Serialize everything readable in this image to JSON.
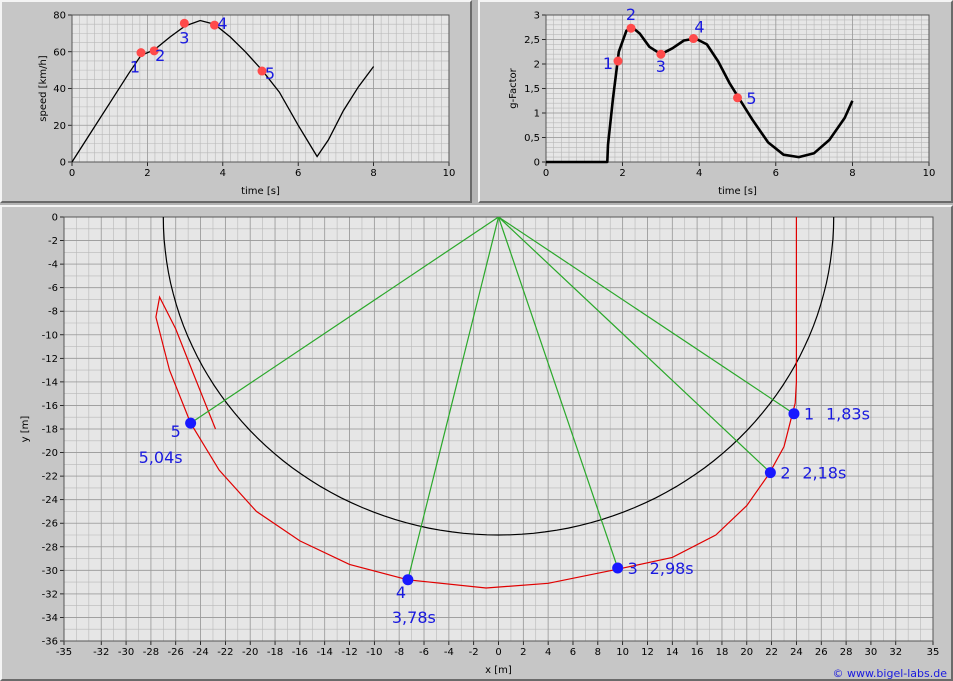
{
  "colors": {
    "panel_bg": "#c6c6c6",
    "plot_bg": "#e6e6e6",
    "grid_minor": "#b8b8b8",
    "grid_major": "#9a9a9a",
    "speed_curve": "#000000",
    "marker_top": "#ff4a4a",
    "marker_bottom": "#1818ff",
    "label_blue": "#1a1adf",
    "track": "#000000",
    "path": "#e00000",
    "rays": "#2aa82a"
  },
  "copyright": "© www.bigel-labs.de",
  "chart_data": [
    {
      "id": "speed",
      "type": "line",
      "xlabel": "time [s]",
      "ylabel": "speed [km/h]",
      "xlim": [
        0,
        10
      ],
      "ylim": [
        0,
        80
      ],
      "xticks": [
        0,
        2,
        4,
        6,
        8,
        10
      ],
      "yticks": [
        0,
        20,
        40,
        60,
        80
      ],
      "grid": true,
      "series": [
        {
          "x": [
            0,
            0.5,
            1.0,
            1.5,
            1.83,
            2.18,
            2.6,
            3.0,
            3.4,
            3.78,
            4.2,
            4.6,
            5.04,
            5.5,
            6.0,
            6.5,
            6.8,
            7.2,
            7.6,
            8.0
          ],
          "y": [
            0,
            16,
            32,
            48,
            58,
            61,
            68,
            74,
            77,
            75,
            68,
            60,
            50,
            38,
            20,
            3,
            12,
            28,
            41,
            52
          ]
        }
      ],
      "markers": [
        {
          "label": "1",
          "x": 1.83,
          "y": 59.5
        },
        {
          "label": "2",
          "x": 2.18,
          "y": 60.5
        },
        {
          "label": "3",
          "x": 2.98,
          "y": 75.5
        },
        {
          "label": "4",
          "x": 3.78,
          "y": 74.5
        },
        {
          "label": "5",
          "x": 5.04,
          "y": 49.5
        }
      ]
    },
    {
      "id": "gfactor",
      "type": "line",
      "xlabel": "time [s]",
      "ylabel": "g-Factor",
      "xlim": [
        0,
        10
      ],
      "ylim": [
        0,
        3
      ],
      "xticks": [
        0,
        2,
        4,
        6,
        8,
        10
      ],
      "yticks": [
        0,
        0.5,
        1,
        1.5,
        2,
        2.5,
        3
      ],
      "ytick_labels": [
        "0",
        "0,5",
        "1",
        "1,5",
        "2",
        "2,5",
        "3"
      ],
      "grid": true,
      "series": [
        {
          "x": [
            0,
            1.6,
            1.62,
            1.75,
            1.9,
            2.1,
            2.25,
            2.45,
            2.7,
            3.0,
            3.3,
            3.6,
            3.9,
            4.2,
            4.5,
            4.8,
            5.04,
            5.4,
            5.8,
            6.2,
            6.6,
            7.0,
            7.4,
            7.8,
            8.0
          ],
          "y": [
            0,
            0,
            0.35,
            1.3,
            2.25,
            2.68,
            2.75,
            2.62,
            2.35,
            2.2,
            2.32,
            2.48,
            2.52,
            2.4,
            2.05,
            1.6,
            1.3,
            0.85,
            0.4,
            0.15,
            0.1,
            0.18,
            0.45,
            0.9,
            1.25
          ]
        }
      ],
      "markers": [
        {
          "label": "1",
          "x": 1.88,
          "y": 2.06
        },
        {
          "label": "2",
          "x": 2.22,
          "y": 2.73
        },
        {
          "label": "3",
          "x": 3.0,
          "y": 2.2
        },
        {
          "label": "4",
          "x": 3.85,
          "y": 2.52
        },
        {
          "label": "5",
          "x": 5.0,
          "y": 1.31
        }
      ]
    },
    {
      "id": "track",
      "type": "line",
      "xlabel": "x [m]",
      "ylabel": "y [m]",
      "xlim": [
        -35,
        35
      ],
      "ylim": [
        -36,
        0
      ],
      "xticks": [
        -35,
        -32,
        -30,
        -28,
        -26,
        -24,
        -22,
        -20,
        -18,
        -16,
        -14,
        -12,
        -10,
        -8,
        -6,
        -4,
        -2,
        0,
        2,
        4,
        6,
        8,
        10,
        12,
        14,
        16,
        18,
        20,
        22,
        24,
        26,
        28,
        30,
        32,
        35
      ],
      "yticks": [
        0,
        -2,
        -4,
        -6,
        -8,
        -10,
        -12,
        -14,
        -16,
        -18,
        -20,
        -22,
        -24,
        -26,
        -28,
        -30,
        -32,
        -34,
        -36
      ],
      "grid": true,
      "circle": {
        "cx": 0,
        "cy": 0,
        "r": 27
      },
      "path": {
        "x": [
          24.0,
          24.0,
          23.9,
          23.6,
          23.0,
          21.8,
          20.0,
          17.5,
          14.0,
          9.6,
          4.0,
          -1.0,
          -7.3,
          -12.0,
          -16.0,
          -19.5,
          -22.5,
          -24.8,
          -26.5,
          -27.6,
          -27.3,
          -26.0,
          -24.5,
          -22.8
        ],
        "y": [
          0,
          -14,
          -15.8,
          -17.0,
          -19.5,
          -21.8,
          -24.5,
          -27.0,
          -28.9,
          -29.9,
          -31.1,
          -31.5,
          -30.8,
          -29.5,
          -27.5,
          -25.0,
          -21.5,
          -17.5,
          -13.0,
          -8.5,
          -6.8,
          -9.5,
          -13.5,
          -18.0
        ]
      },
      "points": [
        {
          "label": "1",
          "time": "1,83s",
          "x": 23.8,
          "y": -16.7,
          "num_pos": "right"
        },
        {
          "label": "2",
          "time": "2,18s",
          "x": 21.9,
          "y": -21.7,
          "num_pos": "right"
        },
        {
          "label": "3",
          "time": "2,98s",
          "x": 9.6,
          "y": -29.8,
          "num_pos": "right"
        },
        {
          "label": "4",
          "time": "3,78s",
          "x": -7.3,
          "y": -30.8,
          "num_pos": "below"
        },
        {
          "label": "5",
          "time": "5,04s",
          "x": -24.8,
          "y": -17.5,
          "num_pos": "left"
        }
      ]
    }
  ]
}
